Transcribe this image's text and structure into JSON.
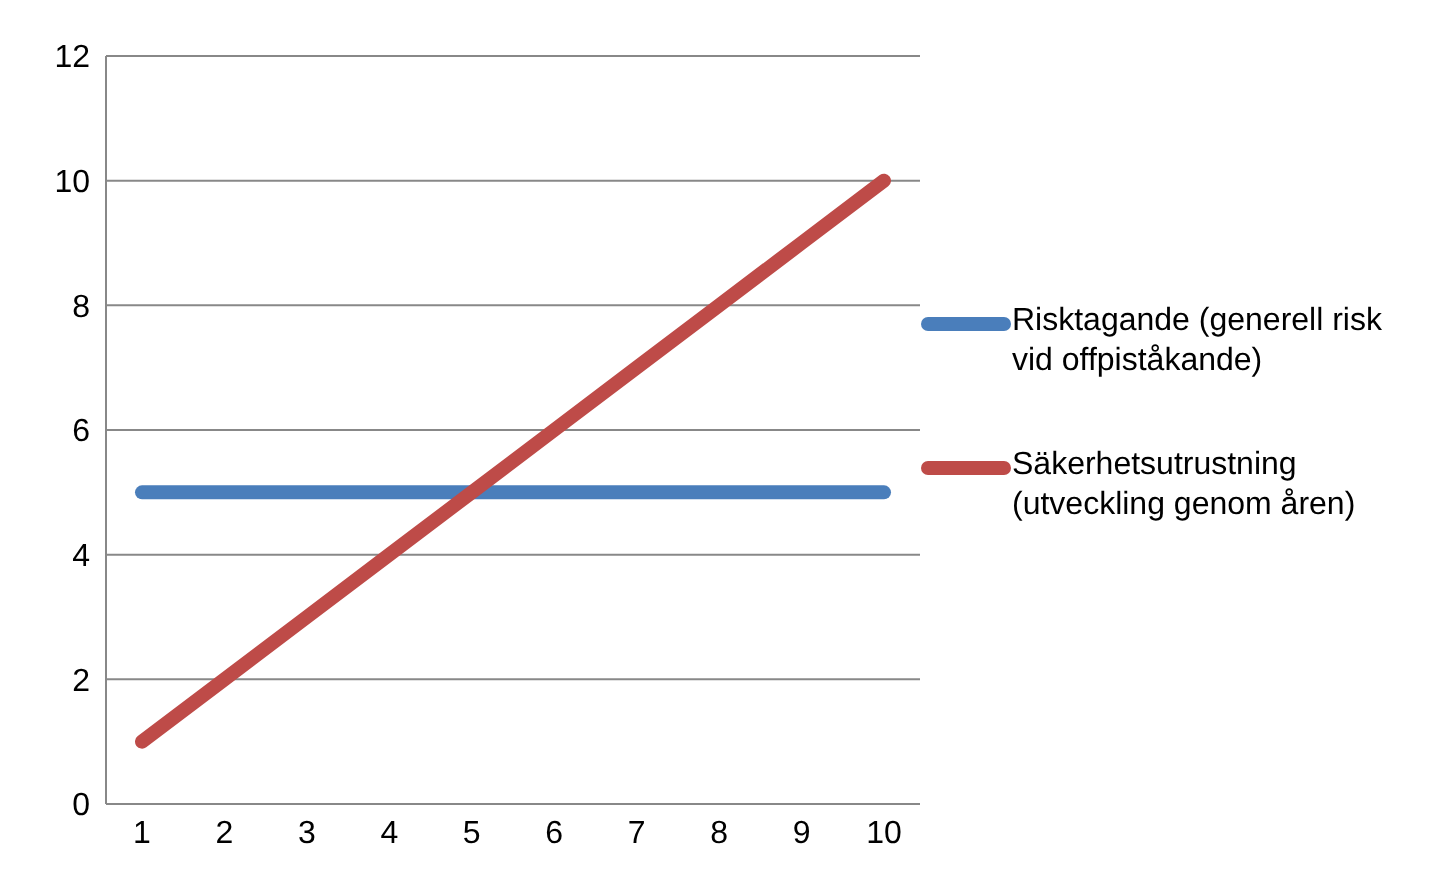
{
  "chart_data": {
    "type": "line",
    "categories": [
      "1",
      "2",
      "3",
      "4",
      "5",
      "6",
      "7",
      "8",
      "9",
      "10"
    ],
    "series": [
      {
        "name": "Risktagande (generell risk vid offpiståkande)",
        "color": "#4a7ebb",
        "values": [
          5,
          5,
          5,
          5,
          5,
          5,
          5,
          5,
          5,
          5
        ]
      },
      {
        "name": "Säkerhetsutrustning (utveckling genom åren)",
        "color": "#be4b48",
        "values": [
          1,
          2,
          3,
          4,
          5,
          6,
          7,
          8,
          9,
          10
        ]
      }
    ],
    "ylim": [
      0,
      12
    ],
    "yticks": [
      0,
      2,
      4,
      6,
      8,
      10,
      12
    ],
    "grid": "y",
    "legend": "right",
    "marker": "none",
    "line_style": "solid"
  }
}
